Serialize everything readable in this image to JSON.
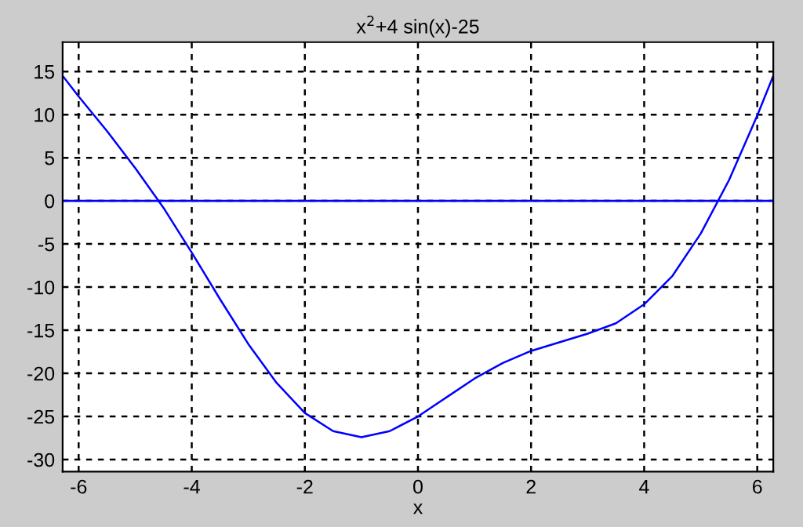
{
  "chart_data": {
    "type": "line",
    "title": "x$^{2}$+4 sin(x)-25",
    "xlabel": "x",
    "x": [
      -6.2832,
      -6,
      -5.5,
      -5,
      -4.5,
      -4,
      -3.5,
      -3,
      -2.5,
      -2,
      -1.5,
      -1,
      -0.5,
      0,
      0.5,
      1,
      1.5,
      2,
      2.5,
      3,
      3.5,
      4,
      4.5,
      5,
      5.5,
      6,
      6.2832
    ],
    "series": [
      {
        "color": "#0000ff",
        "values": [
          14.5,
          12.1,
          8.1,
          3.8,
          -0.8,
          -6.0,
          -11.4,
          -16.6,
          -21.1,
          -24.6,
          -26.7,
          -27.4,
          -26.7,
          -25.0,
          -22.8,
          -20.6,
          -18.8,
          -17.4,
          -16.4,
          -15.4,
          -14.2,
          -12.0,
          -8.7,
          -3.8,
          2.4,
          9.9,
          14.5
        ]
      }
    ],
    "xlim": [
      -6.2832,
      6.2832
    ],
    "ylim": [
      -31.4,
      18.4
    ],
    "xticks": [
      -6,
      -4,
      -2,
      0,
      2,
      4,
      6
    ],
    "yticks": [
      -30,
      -25,
      -20,
      -15,
      -10,
      -5,
      0,
      5,
      10,
      15
    ],
    "grid": true,
    "line_style": "solid",
    "marker": "none",
    "ref_lines": [
      {
        "axis": "y",
        "value": 0,
        "color": "#0000ff"
      }
    ]
  }
}
